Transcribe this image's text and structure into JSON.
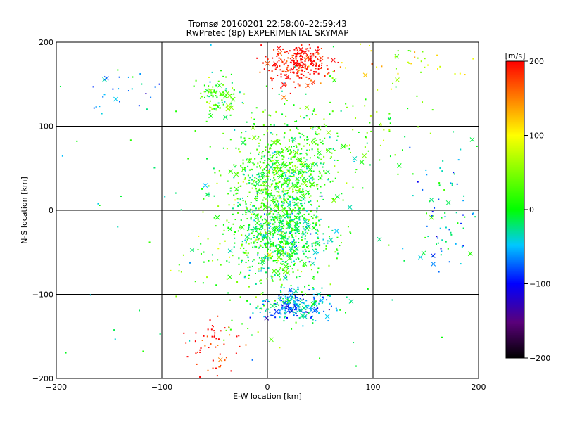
{
  "chart_data": {
    "type": "scatter",
    "title": "Tromsø 20160201 22:58:00–22:59:43",
    "subtitle": "RwPretec (8p) EXPERIMENTAL SKYMAP",
    "xlabel": "E-W location [km]",
    "ylabel": "N-S location [km]",
    "xlim": [
      -200,
      200
    ],
    "ylim": [
      -200,
      200
    ],
    "xticks": [
      -200,
      -100,
      0,
      100,
      200
    ],
    "yticks": [
      -200,
      -100,
      0,
      100,
      200
    ],
    "grid": true,
    "colorbar": {
      "label": "[m/s]",
      "range": [
        -200,
        200
      ],
      "ticks": [
        200,
        100,
        0,
        -100,
        -200
      ],
      "colors": [
        "#000000",
        "#5a007a",
        "#0000ff",
        "#00c8ff",
        "#00ff00",
        "#ffff00",
        "#ff0000"
      ]
    },
    "clusters": [
      {
        "cx": 30,
        "cy": 175,
        "sx": 14,
        "sy": 12,
        "n": 260,
        "v": 200
      },
      {
        "cx": 12,
        "cy": 40,
        "sx": 22,
        "sy": 28,
        "n": 700,
        "v": 20
      },
      {
        "cx": 12,
        "cy": -30,
        "sx": 20,
        "sy": 28,
        "n": 700,
        "v": -5
      },
      {
        "cx": 25,
        "cy": -115,
        "sx": 18,
        "sy": 9,
        "n": 230,
        "v": -55
      },
      {
        "cx": -45,
        "cy": 135,
        "sx": 10,
        "sy": 12,
        "n": 90,
        "v": 15
      },
      {
        "cx": -50,
        "cy": -160,
        "sx": 12,
        "sy": 18,
        "n": 60,
        "v": 200
      },
      {
        "cx": 170,
        "cy": 0,
        "sx": 14,
        "sy": 35,
        "n": 70,
        "v": -40
      },
      {
        "cx": -140,
        "cy": 140,
        "sx": 20,
        "sy": 14,
        "n": 25,
        "v": -60
      },
      {
        "cx": 130,
        "cy": 180,
        "sx": 35,
        "sy": 14,
        "n": 40,
        "v": 100
      },
      {
        "cx": 60,
        "cy": 100,
        "sx": 40,
        "sy": 30,
        "n": 120,
        "v": 20
      },
      {
        "cx": -20,
        "cy": -60,
        "sx": 30,
        "sy": 40,
        "n": 110,
        "v": 30
      },
      {
        "cx": 0,
        "cy": 0,
        "sx": 110,
        "sy": 110,
        "n": 150,
        "v": 0
      }
    ]
  }
}
